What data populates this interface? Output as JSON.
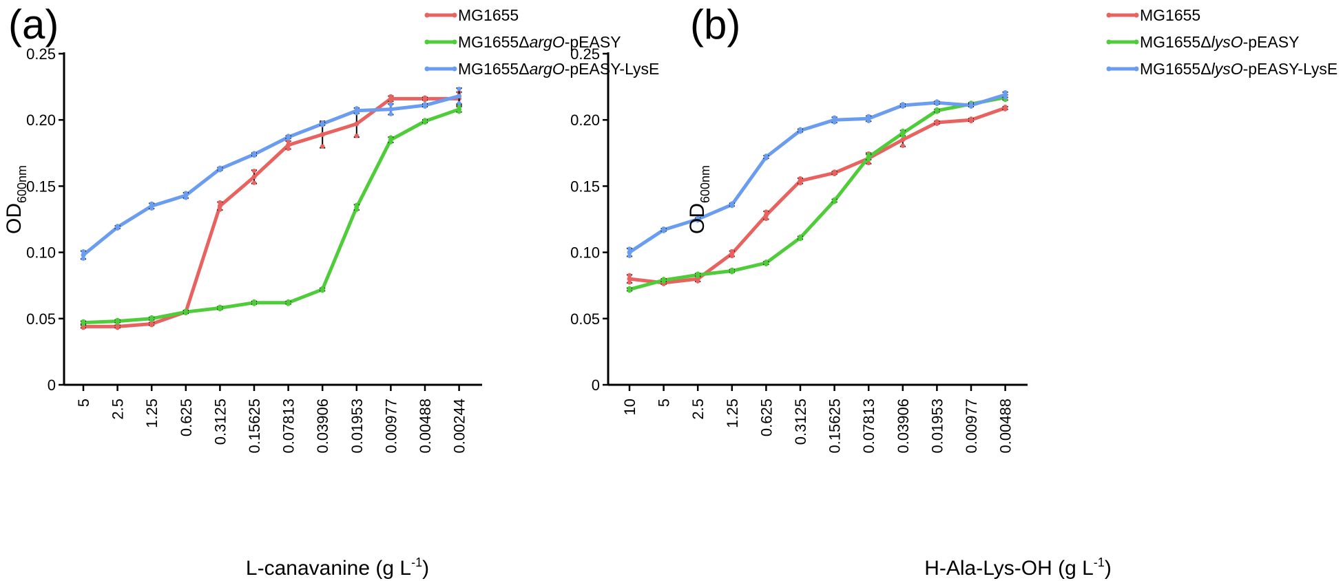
{
  "chart_data": [
    {
      "type": "line",
      "panel_label": "(a)",
      "categories": [
        "5",
        "2.5",
        "1.25",
        "0.625",
        "0.3125",
        "0.15625",
        "0.07813",
        "0.03906",
        "0.01953",
        "0.00977",
        "0.00488",
        "0.00244"
      ],
      "xlabel_main": "L-canavanine (g L",
      "xlabel_sup": "-1",
      "xlabel_end": ")",
      "ylabel_main": "OD",
      "ylabel_sub": "600nm",
      "ylim": [
        0,
        0.25
      ],
      "yticks": [
        "0",
        "0.05",
        "0.10",
        "0.15",
        "0.20",
        "0.25"
      ],
      "legend_position": "top-right",
      "series": [
        {
          "name": "MG1655",
          "name_prefix": "MG1655",
          "name_italic": "",
          "name_suffix": "",
          "color": "#e8625f",
          "values": [
            0.044,
            0.044,
            0.046,
            0.055,
            0.135,
            0.157,
            0.181,
            0.189,
            0.197,
            0.216,
            0.216,
            0.216
          ],
          "errors": [
            0.001,
            0.001,
            0.001,
            0.001,
            0.003,
            0.005,
            0.003,
            0.01,
            0.01,
            0.002,
            0.001,
            0.005
          ]
        },
        {
          "name": "MG1655ΔargO-pEASY",
          "name_prefix": "MG1655Δ",
          "name_italic": "argO",
          "name_suffix": "-pEASY",
          "color": "#4fcc3a",
          "values": [
            0.047,
            0.048,
            0.05,
            0.055,
            0.058,
            0.062,
            0.062,
            0.072,
            0.134,
            0.185,
            0.199,
            0.208
          ],
          "errors": [
            0.001,
            0.001,
            0.001,
            0.001,
            0.001,
            0.001,
            0.001,
            0.001,
            0.002,
            0.002,
            0.001,
            0.002
          ]
        },
        {
          "name": "MG1655ΔargO-pEASY-LysE",
          "name_prefix": "MG1655Δ",
          "name_italic": "argO",
          "name_suffix": "-pEASY-LysE",
          "color": "#6a9cf0",
          "values": [
            0.098,
            0.119,
            0.135,
            0.143,
            0.163,
            0.174,
            0.187,
            0.197,
            0.207,
            0.208,
            0.211,
            0.218
          ],
          "errors": [
            0.003,
            0.001,
            0.002,
            0.002,
            0.001,
            0.001,
            0.001,
            0.001,
            0.002,
            0.004,
            0.001,
            0.006
          ]
        }
      ]
    },
    {
      "type": "line",
      "panel_label": "(b)",
      "categories": [
        "10",
        "5",
        "2.5",
        "1.25",
        "0.625",
        "0.3125",
        "0.15625",
        "0.07813",
        "0.03906",
        "0.01953",
        "0.00977",
        "0.00488"
      ],
      "xlabel_main": "H-Ala-Lys-OH (g L",
      "xlabel_sup": "-1",
      "xlabel_end": ")",
      "ylabel_main": "OD",
      "ylabel_sub": "600nm",
      "ylim": [
        0,
        0.25
      ],
      "yticks": [
        "0",
        "0.05",
        "0.10",
        "0.15",
        "0.20",
        "0.25"
      ],
      "legend_position": "top-right",
      "series": [
        {
          "name": "MG1655",
          "name_prefix": "MG1655",
          "name_italic": "",
          "name_suffix": "",
          "color": "#e8625f",
          "values": [
            0.08,
            0.077,
            0.08,
            0.099,
            0.128,
            0.154,
            0.16,
            0.171,
            0.185,
            0.198,
            0.2,
            0.209
          ],
          "errors": [
            0.003,
            0.001,
            0.002,
            0.002,
            0.003,
            0.002,
            0.001,
            0.004,
            0.005,
            0.001,
            0.001,
            0.001
          ]
        },
        {
          "name": "MG1655ΔlysO-pEASY",
          "name_prefix": "MG1655Δ",
          "name_italic": "lysO",
          "name_suffix": "-pEASY",
          "color": "#4fcc3a",
          "values": [
            0.072,
            0.079,
            0.083,
            0.086,
            0.092,
            0.111,
            0.139,
            0.172,
            0.19,
            0.207,
            0.212,
            0.217
          ],
          "errors": [
            0.001,
            0.001,
            0.001,
            0.001,
            0.001,
            0.001,
            0.001,
            0.002,
            0.002,
            0.001,
            0.001,
            0.002
          ]
        },
        {
          "name": "MG1655ΔlysO-pEASY-LysE",
          "name_prefix": "MG1655Δ",
          "name_italic": "lysO",
          "name_suffix": "-pEASY-LysE",
          "color": "#6a9cf0",
          "values": [
            0.1,
            0.117,
            0.125,
            0.136,
            0.172,
            0.192,
            0.2,
            0.201,
            0.211,
            0.213,
            0.211,
            0.219
          ],
          "errors": [
            0.003,
            0.001,
            0.001,
            0.001,
            0.001,
            0.001,
            0.002,
            0.002,
            0.001,
            0.001,
            0.001,
            0.002
          ]
        }
      ]
    }
  ]
}
